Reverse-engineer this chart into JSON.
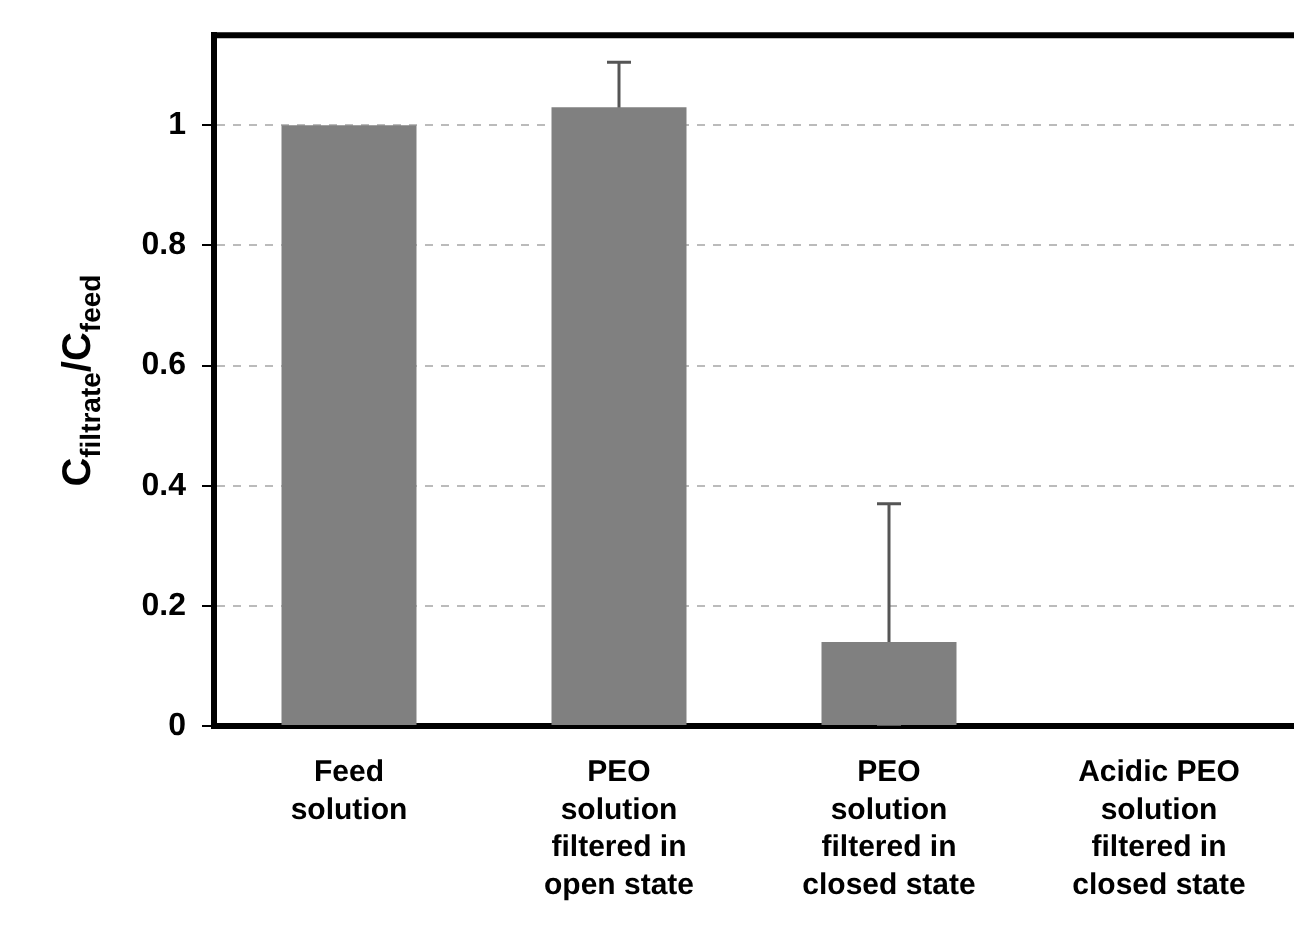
{
  "chart_data": {
    "type": "bar",
    "ylabel": "C$_{filtrate}$/C$_{feed}$",
    "categories": [
      "Feed\nsolution",
      "PEO\nsolution\nfiltered in\nopen state",
      "PEO\nsolution\nfiltered in\nclosed state",
      "Acidic PEO\nsolution\nfiltered in\nclosed state"
    ],
    "values": [
      1.0,
      1.03,
      0.14,
      0
    ],
    "errors": [
      null,
      0.075,
      [
        0,
        0.37
      ],
      null
    ],
    "color": "#808080",
    "ylim": [
      0,
      1.15
    ],
    "yticks": [
      0,
      0.2,
      0.4,
      0.6,
      0.8,
      1
    ],
    "grid": "y",
    "legend": false
  }
}
